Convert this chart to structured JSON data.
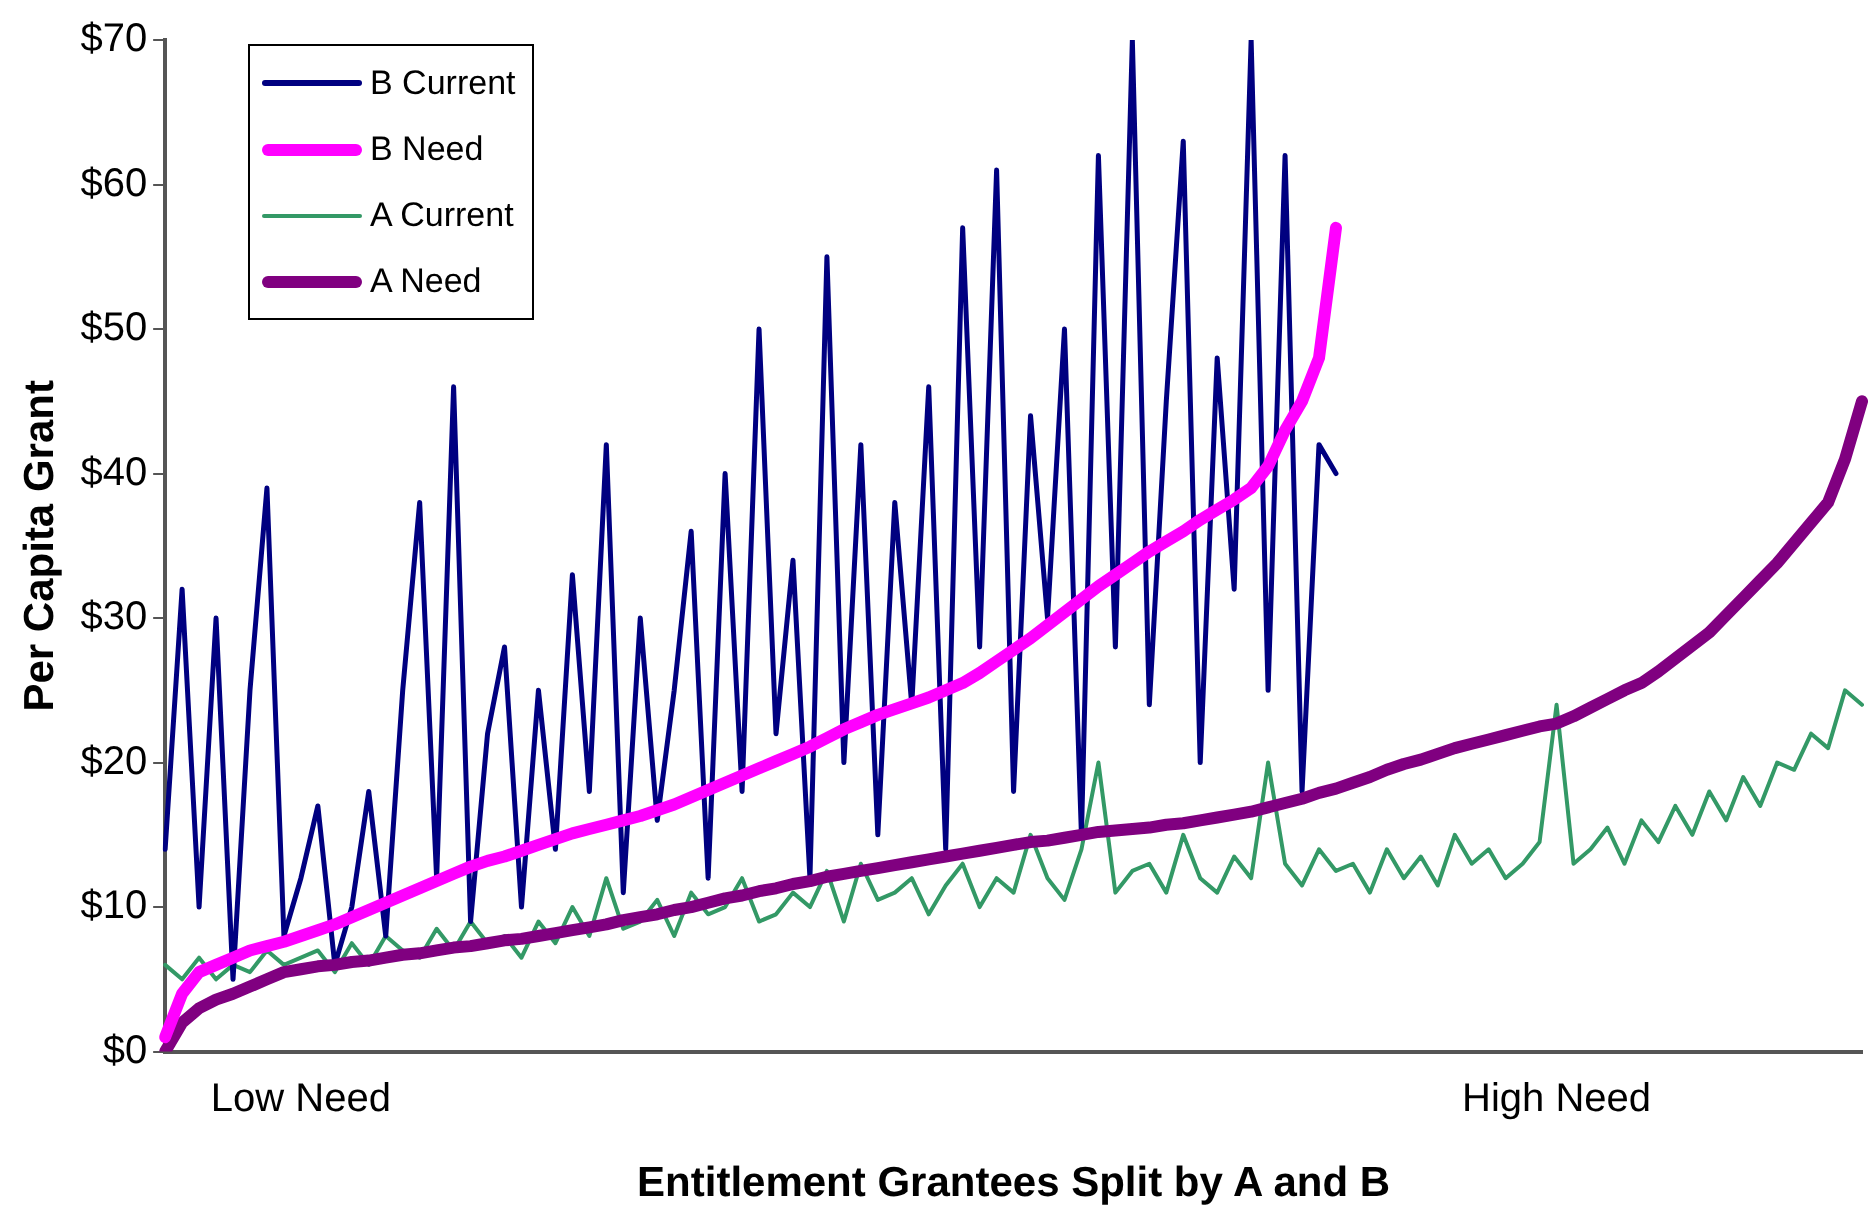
{
  "chart_data": {
    "type": "line",
    "xlabel": "Entitlement Grantees Split by A and B",
    "ylabel": "Per Capita Grant",
    "categories": [
      null,
      null,
      null,
      null,
      null,
      null,
      null,
      null,
      "Low Need",
      null,
      null,
      null,
      null,
      null,
      null,
      null,
      null,
      null,
      null,
      null,
      null,
      null,
      null,
      null,
      null,
      null,
      null,
      null,
      null,
      null,
      null,
      null,
      null,
      null,
      null,
      null,
      null,
      null,
      null,
      null,
      null,
      null,
      null,
      null,
      null,
      null,
      null,
      null,
      null,
      null,
      null,
      null,
      null,
      null,
      null,
      null,
      null,
      null,
      null,
      null,
      null,
      null,
      null,
      null,
      null,
      null,
      null,
      null,
      null,
      null,
      null,
      null,
      null,
      null,
      null,
      null,
      null,
      null,
      null,
      null,
      null,
      null,
      "High Need",
      null,
      null,
      null,
      null,
      null,
      null,
      null,
      null,
      null,
      null,
      null,
      null,
      null,
      null,
      null,
      null,
      null,
      null
    ],
    "ylim": [
      0,
      70
    ],
    "yticks": [
      {
        "value": 0,
        "label": "$0"
      },
      {
        "value": 10,
        "label": "$10"
      },
      {
        "value": 20,
        "label": "$20"
      },
      {
        "value": 30,
        "label": "$30"
      },
      {
        "value": 40,
        "label": "$40"
      },
      {
        "value": 50,
        "label": "$50"
      },
      {
        "value": 60,
        "label": "$60"
      },
      {
        "value": 70,
        "label": "$70"
      }
    ],
    "legend": "top left",
    "series": [
      {
        "name": "B Current",
        "color": "#000080",
        "values": [
          14,
          32,
          10,
          30,
          5,
          25,
          39,
          8,
          12,
          17,
          6,
          10,
          18,
          8,
          25,
          38,
          12,
          46,
          9,
          22,
          28,
          10,
          25,
          14,
          33,
          18,
          42,
          11,
          30,
          16,
          25,
          36,
          12,
          40,
          18,
          50,
          22,
          34,
          12,
          55,
          20,
          42,
          15,
          38,
          24,
          46,
          14,
          57,
          28,
          61,
          18,
          44,
          30,
          50,
          15,
          62,
          28,
          70,
          24,
          45,
          63,
          20,
          48,
          32,
          70,
          25,
          62,
          18,
          42,
          40,
          null,
          null,
          null,
          null,
          null,
          null,
          null,
          null,
          null,
          null,
          null,
          null,
          null,
          null,
          null,
          null,
          null,
          null,
          null,
          null,
          null,
          null,
          null,
          null,
          null,
          null,
          null,
          null,
          null,
          null,
          null
        ]
      },
      {
        "name": "B Need",
        "color": "#ff00ff",
        "values": [
          1,
          4,
          5.5,
          6,
          6.5,
          7,
          7.3,
          7.6,
          8,
          8.4,
          8.8,
          9.3,
          9.8,
          10.3,
          10.8,
          11.3,
          11.8,
          12.3,
          12.8,
          13.2,
          13.5,
          13.9,
          14.3,
          14.7,
          15.1,
          15.4,
          15.7,
          16,
          16.3,
          16.7,
          17.1,
          17.6,
          18.1,
          18.6,
          19.1,
          19.6,
          20.1,
          20.6,
          21.1,
          21.7,
          22.3,
          22.8,
          23.3,
          23.7,
          24.1,
          24.5,
          25,
          25.5,
          26.2,
          27,
          27.8,
          28.6,
          29.5,
          30.4,
          31.3,
          32.2,
          33,
          33.8,
          34.6,
          35.3,
          36,
          36.8,
          37.5,
          38.2,
          39,
          40.5,
          43,
          45,
          48,
          57,
          null,
          null,
          null,
          null,
          null,
          null,
          null,
          null,
          null,
          null,
          null,
          null,
          null,
          null,
          null,
          null,
          null,
          null,
          null,
          null,
          null,
          null,
          null,
          null,
          null,
          null,
          null,
          null,
          null,
          null,
          null
        ]
      },
      {
        "name": "A Current",
        "color": "#339966",
        "values": [
          6,
          5,
          6.5,
          5,
          6,
          5.5,
          7,
          6,
          6.5,
          7,
          5.5,
          7.5,
          6,
          8,
          7,
          6.5,
          8.5,
          7,
          9,
          7.5,
          8,
          6.5,
          9,
          7.5,
          10,
          8,
          12,
          8.5,
          9,
          10.5,
          8,
          11,
          9.5,
          10,
          12,
          9,
          9.5,
          11,
          10,
          12.5,
          9,
          13,
          10.5,
          11,
          12,
          9.5,
          11.5,
          13,
          10,
          12,
          11,
          15,
          12,
          10.5,
          14,
          20,
          11,
          12.5,
          13,
          11,
          15,
          12,
          11,
          13.5,
          12,
          20,
          13,
          11.5,
          14,
          12.5,
          13,
          11,
          14,
          12,
          13.5,
          11.5,
          15,
          13,
          14,
          12,
          13,
          14.5,
          24,
          13,
          14,
          15.5,
          13,
          16,
          14.5,
          17,
          15,
          18,
          16,
          19,
          17,
          20,
          19.5,
          22,
          21,
          25,
          24
        ]
      },
      {
        "name": "A Need",
        "color": "#800080",
        "values": [
          0,
          2,
          3,
          3.6,
          4,
          4.5,
          5,
          5.5,
          5.7,
          5.9,
          6,
          6.2,
          6.3,
          6.5,
          6.7,
          6.8,
          7,
          7.2,
          7.3,
          7.5,
          7.7,
          7.8,
          8,
          8.2,
          8.4,
          8.6,
          8.8,
          9.1,
          9.3,
          9.5,
          9.8,
          10,
          10.3,
          10.6,
          10.8,
          11.1,
          11.3,
          11.6,
          11.8,
          12.1,
          12.3,
          12.5,
          12.7,
          12.9,
          13.1,
          13.3,
          13.5,
          13.7,
          13.9,
          14.1,
          14.3,
          14.5,
          14.6,
          14.8,
          15,
          15.2,
          15.3,
          15.4,
          15.5,
          15.7,
          15.8,
          16,
          16.2,
          16.4,
          16.6,
          16.9,
          17.2,
          17.5,
          17.9,
          18.2,
          18.6,
          19,
          19.5,
          19.9,
          20.2,
          20.6,
          21,
          21.3,
          21.6,
          21.9,
          22.2,
          22.5,
          22.7,
          23.2,
          23.8,
          24.4,
          25,
          25.5,
          26.3,
          27.2,
          28.1,
          29,
          30.2,
          31.4,
          32.6,
          33.8,
          35.2,
          36.6,
          38,
          41,
          45
        ]
      }
    ]
  }
}
